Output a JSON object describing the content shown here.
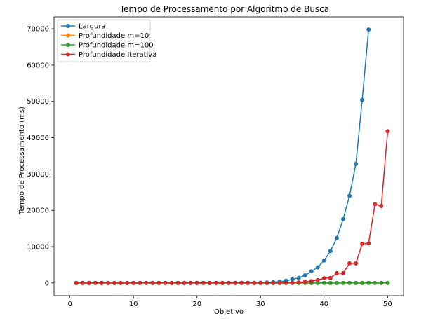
{
  "chart_data": {
    "type": "line",
    "title": "Tempo de Processamento por Algoritmo de Busca",
    "xlabel": "Objetivo",
    "ylabel": "Tempo de Processamento (ms)",
    "xlim": [
      -2.5,
      52.5
    ],
    "ylim": [
      -3500,
      73300
    ],
    "xticks": [
      0,
      10,
      20,
      30,
      40,
      50
    ],
    "yticks": [
      0,
      10000,
      20000,
      30000,
      40000,
      50000,
      60000,
      70000
    ],
    "grid": false,
    "legend_position": "top-left",
    "series": [
      {
        "name": "Largura",
        "color": "#1f77b4",
        "x": [
          1,
          2,
          3,
          4,
          5,
          6,
          7,
          8,
          9,
          10,
          11,
          12,
          13,
          14,
          15,
          16,
          17,
          18,
          19,
          20,
          21,
          22,
          23,
          24,
          25,
          26,
          27,
          28,
          29,
          30,
          31,
          32,
          33,
          34,
          35,
          36,
          37,
          38,
          39,
          40,
          41,
          42,
          43,
          44,
          45,
          46,
          47
        ],
        "y": [
          0,
          0,
          0,
          0,
          0,
          0,
          0,
          0,
          0,
          0,
          0,
          0,
          0,
          0,
          0,
          0,
          0,
          0,
          0,
          0,
          0,
          0,
          0,
          0,
          0,
          10,
          20,
          30,
          50,
          80,
          130,
          200,
          350,
          600,
          1000,
          1400,
          2100,
          3200,
          4300,
          6200,
          8800,
          12400,
          17600,
          24000,
          32800,
          50400,
          69800
        ]
      },
      {
        "name": "Profundidade m=10",
        "color": "#ff7f0e",
        "x": [
          1,
          2,
          3,
          4,
          5,
          6,
          7,
          8,
          9,
          10,
          11,
          12,
          13,
          14,
          15,
          16,
          17,
          18,
          19,
          20,
          21,
          22,
          23,
          24,
          25,
          26,
          27,
          28,
          29,
          30,
          31,
          32,
          33,
          34,
          35,
          36,
          37,
          38,
          39,
          40,
          41,
          42,
          43,
          44,
          45,
          46,
          47,
          48,
          49,
          50
        ],
        "y": [
          0,
          0,
          0,
          0,
          0,
          0,
          0,
          0,
          0,
          0,
          0,
          0,
          0,
          0,
          0,
          0,
          0,
          0,
          0,
          0,
          0,
          0,
          0,
          0,
          0,
          0,
          0,
          0,
          0,
          0,
          0,
          0,
          0,
          0,
          0,
          0,
          0,
          0,
          0,
          0,
          0,
          0,
          0,
          0,
          0,
          0,
          0,
          0,
          0,
          0
        ]
      },
      {
        "name": "Profundidade m=100",
        "color": "#2ca02c",
        "x": [
          1,
          2,
          3,
          4,
          5,
          6,
          7,
          8,
          9,
          10,
          11,
          12,
          13,
          14,
          15,
          16,
          17,
          18,
          19,
          20,
          21,
          22,
          23,
          24,
          25,
          26,
          27,
          28,
          29,
          30,
          31,
          32,
          33,
          34,
          35,
          36,
          37,
          38,
          39,
          40,
          41,
          42,
          43,
          44,
          45,
          46,
          47,
          48,
          49,
          50
        ],
        "y": [
          0,
          0,
          0,
          0,
          0,
          0,
          0,
          0,
          0,
          0,
          0,
          0,
          0,
          0,
          0,
          0,
          0,
          0,
          0,
          0,
          0,
          0,
          0,
          0,
          0,
          0,
          0,
          0,
          0,
          0,
          0,
          0,
          0,
          0,
          0,
          0,
          0,
          0,
          0,
          0,
          0,
          0,
          0,
          0,
          0,
          0,
          0,
          0,
          0,
          0
        ]
      },
      {
        "name": "Profundidade Iterativa",
        "color": "#d62728",
        "x": [
          1,
          2,
          3,
          4,
          5,
          6,
          7,
          8,
          9,
          10,
          11,
          12,
          13,
          14,
          15,
          16,
          17,
          18,
          19,
          20,
          21,
          22,
          23,
          24,
          25,
          26,
          27,
          28,
          29,
          30,
          31,
          32,
          33,
          34,
          35,
          36,
          37,
          38,
          39,
          40,
          41,
          42,
          43,
          44,
          45,
          46,
          47,
          48,
          49,
          50
        ],
        "y": [
          0,
          0,
          0,
          0,
          0,
          0,
          0,
          0,
          0,
          0,
          0,
          0,
          0,
          0,
          0,
          0,
          0,
          0,
          0,
          0,
          0,
          0,
          0,
          0,
          0,
          0,
          0,
          0,
          0,
          0,
          0,
          0,
          0,
          0,
          50,
          150,
          300,
          500,
          800,
          1300,
          1400,
          2700,
          2700,
          5400,
          5400,
          10800,
          10900,
          21700,
          21200,
          41800
        ]
      }
    ]
  }
}
